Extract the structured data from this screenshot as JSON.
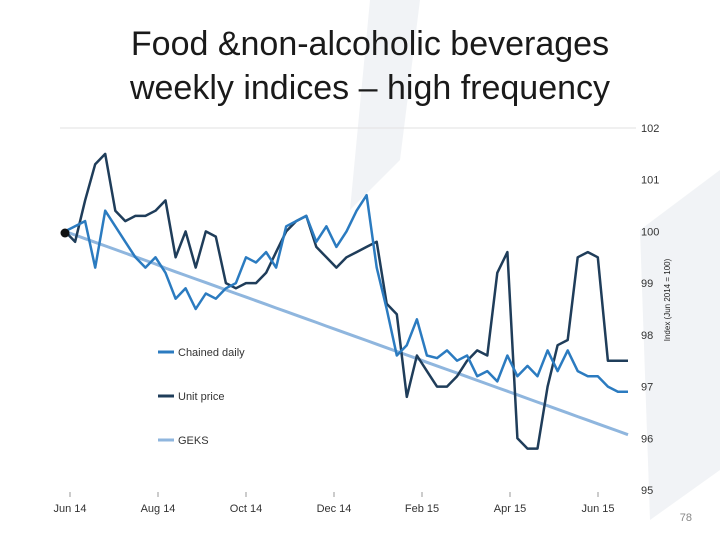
{
  "slide": {
    "title_line1": "Food &non-alcoholic beverages",
    "title_line2": "weekly indices – high frequency",
    "page_number": "78"
  },
  "chart_data": {
    "type": "line",
    "xlabel": "",
    "ylabel": "Index (Jun 2014 = 100)",
    "ylim": [
      95,
      102
    ],
    "yticks": [
      "95",
      "96",
      "97",
      "98",
      "99",
      "100",
      "101",
      "102"
    ],
    "xticks": [
      "Jun 14",
      "Aug 14",
      "Oct 14",
      "Dec 14",
      "Feb 15",
      "Apr 15",
      "Jun 15"
    ],
    "grid": false,
    "legend_position": "left",
    "series": [
      {
        "name": "Chained daily",
        "color": "#2b7bc0",
        "values": [
          100.0,
          100.1,
          100.2,
          99.3,
          100.4,
          100.1,
          99.8,
          99.5,
          99.3,
          99.5,
          99.2,
          98.7,
          98.9,
          98.5,
          98.8,
          98.7,
          98.9,
          99.0,
          99.5,
          99.4,
          99.6,
          99.3,
          100.1,
          100.2,
          100.3,
          99.8,
          100.1,
          99.7,
          100.0,
          100.4,
          100.7,
          99.3,
          98.5,
          97.6,
          97.8,
          98.3,
          97.6,
          97.55,
          97.7,
          97.5,
          97.6,
          97.2,
          97.3,
          97.1,
          97.6,
          97.2,
          97.4,
          97.2,
          97.7,
          97.3,
          97.7,
          97.3,
          97.2,
          97.2,
          97.0,
          96.9,
          96.9
        ]
      },
      {
        "name": "Unit price",
        "color": "#1f3d5a",
        "values": [
          100.0,
          99.8,
          100.6,
          101.3,
          101.5,
          100.4,
          100.2,
          100.3,
          100.3,
          100.4,
          100.6,
          99.5,
          100.0,
          99.3,
          100.0,
          99.9,
          99.0,
          98.9,
          99.0,
          99.0,
          99.2,
          99.6,
          100.0,
          100.2,
          100.3,
          99.7,
          99.5,
          99.3,
          99.5,
          99.6,
          99.7,
          99.8,
          98.6,
          98.4,
          96.8,
          97.6,
          97.3,
          97.0,
          97.0,
          97.2,
          97.5,
          97.7,
          97.6,
          99.2,
          99.6,
          96.0,
          95.8,
          95.8,
          97.0,
          97.8,
          97.9,
          99.5,
          99.6,
          99.5,
          97.5,
          97.5,
          97.5
        ]
      },
      {
        "name": "GEKS",
        "color": "#8fb6de",
        "values": [
          100.0,
          99.93,
          99.86,
          99.79,
          99.72,
          99.65,
          99.58,
          99.51,
          99.44,
          99.37,
          99.29,
          99.22,
          99.15,
          99.08,
          99.01,
          98.94,
          98.87,
          98.8,
          98.73,
          98.66,
          98.59,
          98.52,
          98.45,
          98.38,
          98.31,
          98.24,
          98.17,
          98.1,
          98.03,
          97.96,
          97.89,
          97.82,
          97.75,
          97.68,
          97.61,
          97.54,
          97.47,
          97.4,
          97.33,
          97.26,
          97.19,
          97.12,
          97.05,
          96.98,
          96.91,
          96.84,
          96.77,
          96.7,
          96.63,
          96.56,
          96.49,
          96.42,
          96.35,
          96.28,
          96.21,
          96.14,
          96.07
        ]
      }
    ]
  }
}
